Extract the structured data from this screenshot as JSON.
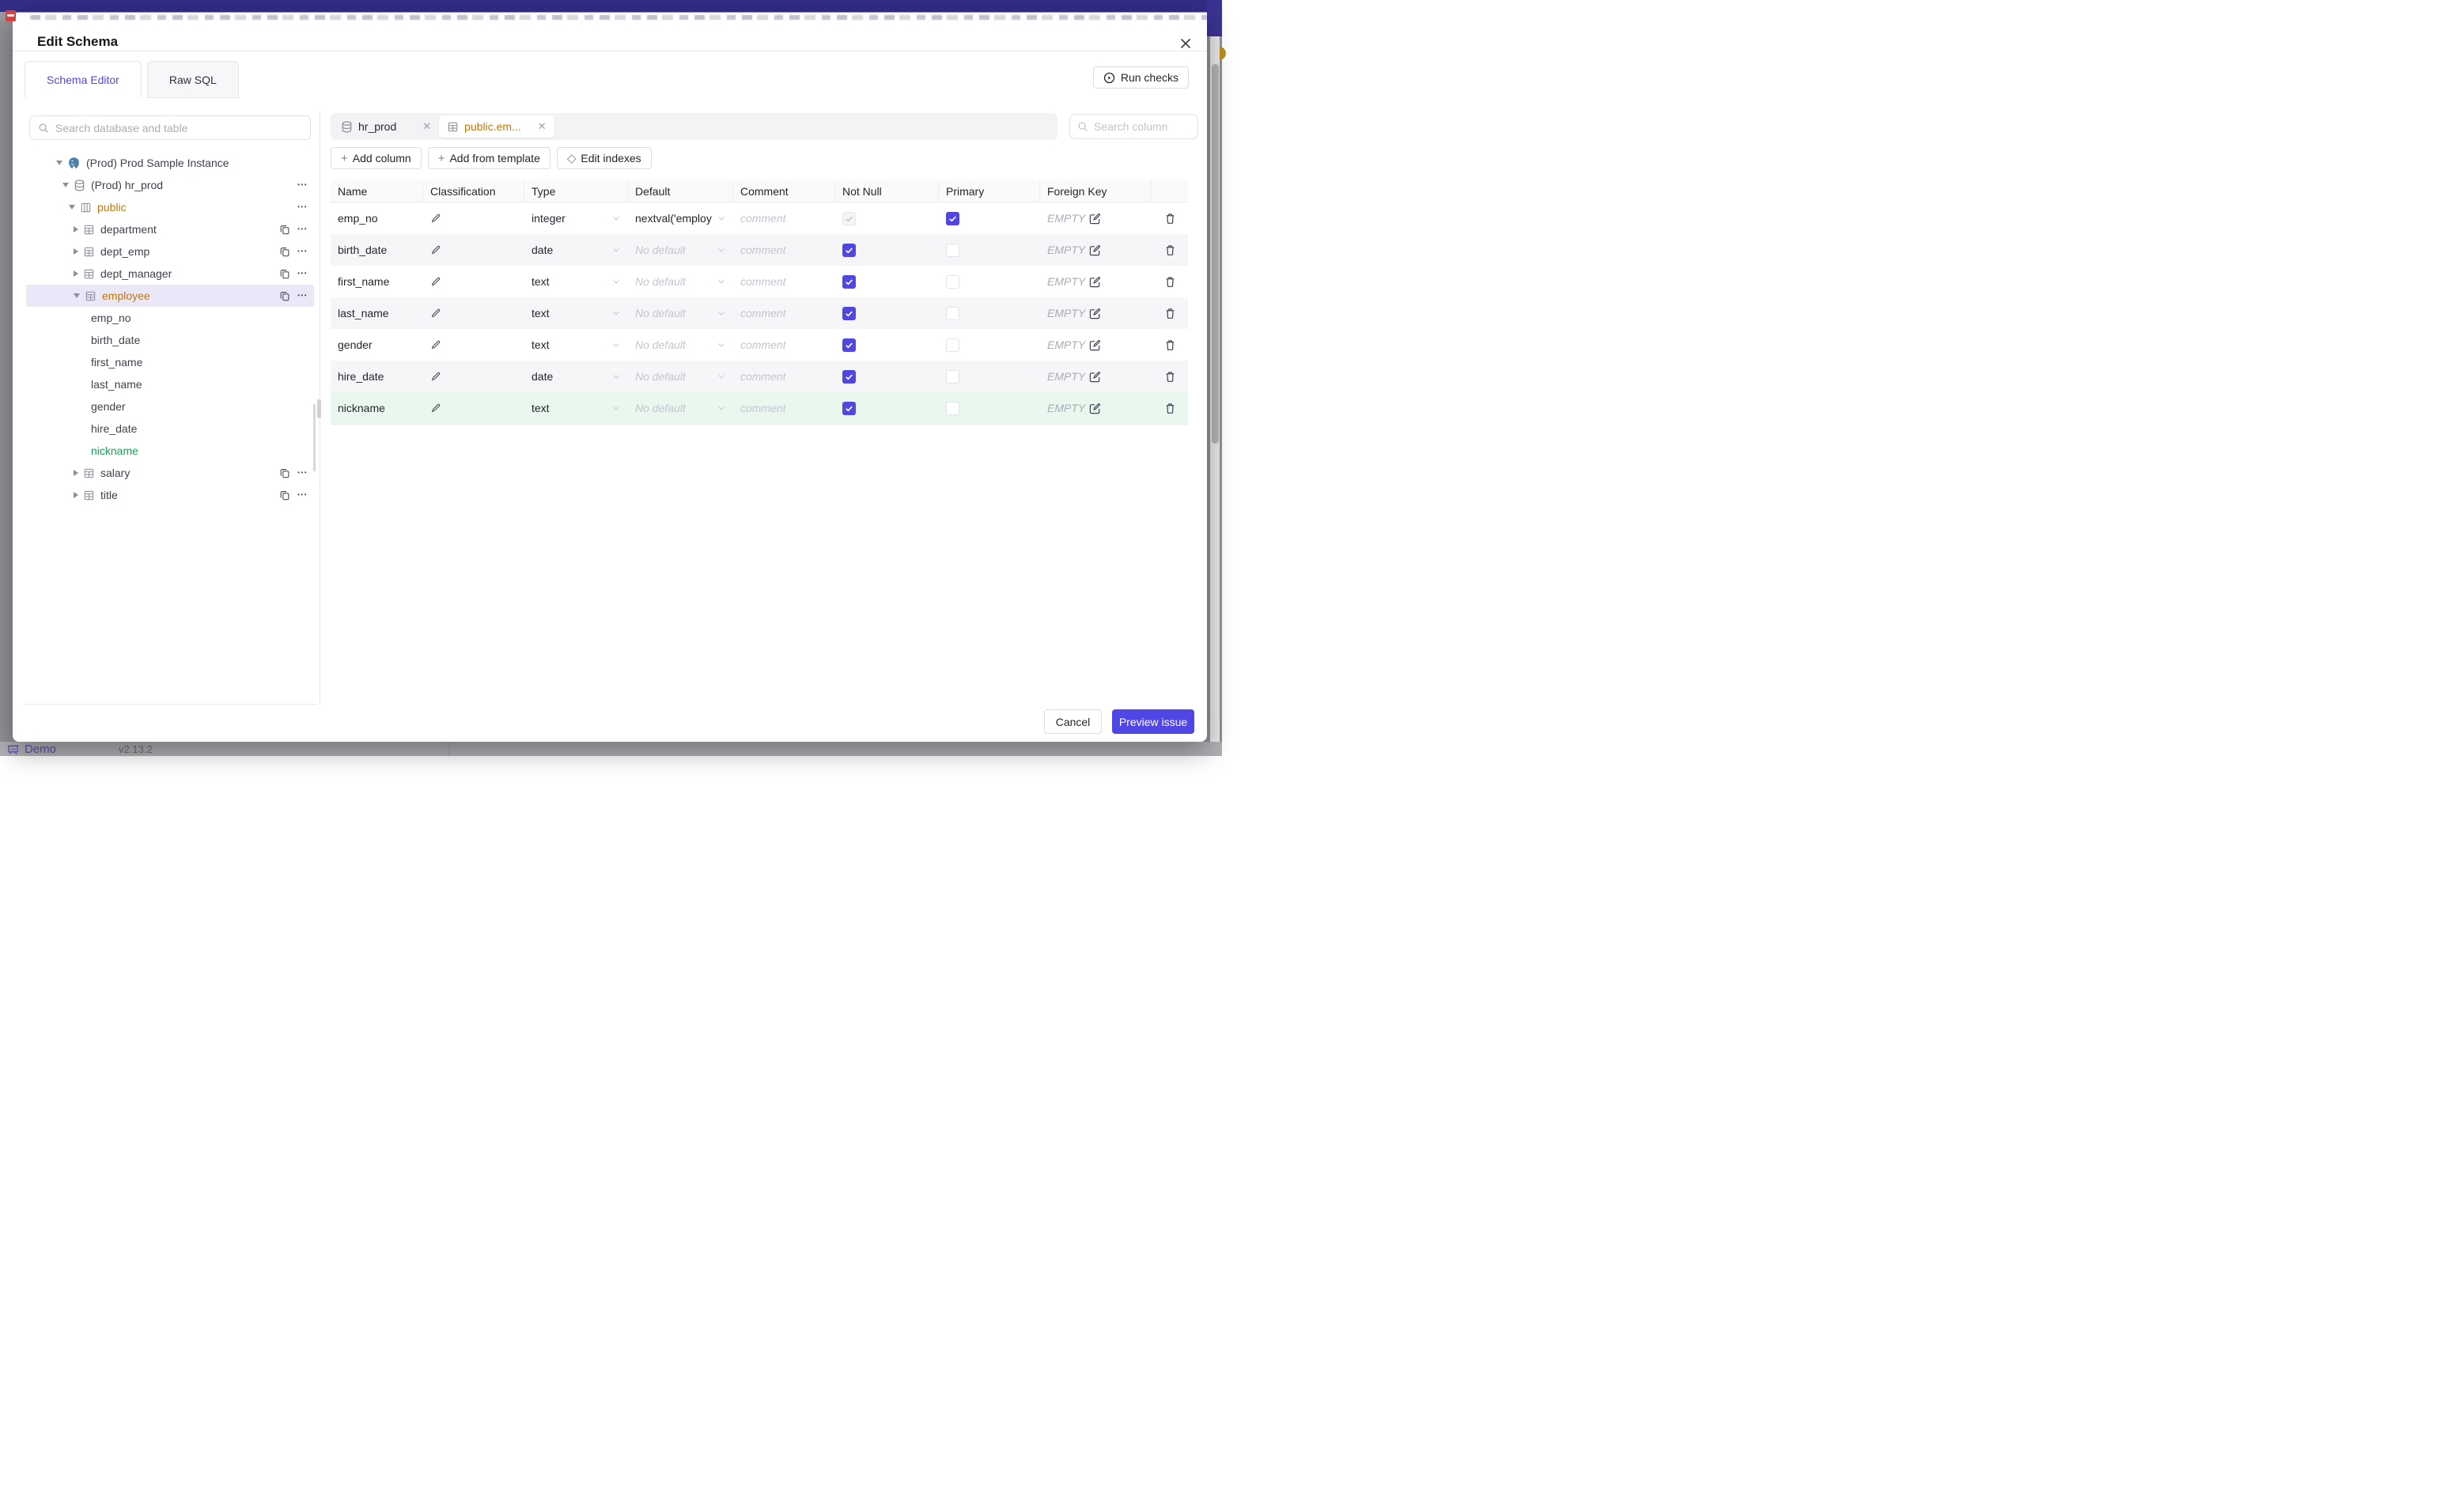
{
  "colors": {
    "primary": "#4f46e5",
    "amber": "#c2770e",
    "green": "#18a058",
    "banner": "#332d85",
    "checkbox": "#5146e0"
  },
  "underlay": {
    "demo_label": "Demo",
    "version": "v2.13.2"
  },
  "modal": {
    "title": "Edit Schema",
    "tabs": [
      {
        "label": "Schema Editor",
        "active": true
      },
      {
        "label": "Raw SQL",
        "active": false
      }
    ],
    "run_checks_label": "Run checks",
    "sidebar": {
      "search_placeholder": "Search database and table",
      "tree": [
        {
          "label": "(Prod) Prod Sample Instance",
          "level": 0,
          "caret": "down",
          "icon": "postgres"
        },
        {
          "label": "(Prod) hr_prod",
          "level": 1,
          "caret": "down",
          "icon": "database",
          "dots": true
        },
        {
          "label": "public",
          "level": 2,
          "caret": "down",
          "icon": "schema",
          "color": "amber",
          "dots": true
        },
        {
          "label": "department",
          "level": 3,
          "caret": "right",
          "icon": "table",
          "copy": true,
          "dots": true
        },
        {
          "label": "dept_emp",
          "level": 3,
          "caret": "right",
          "icon": "table",
          "copy": true,
          "dots": true
        },
        {
          "label": "dept_manager",
          "level": 3,
          "caret": "right",
          "icon": "table",
          "copy": true,
          "dots": true
        },
        {
          "label": "employee",
          "level": 3,
          "caret": "down",
          "icon": "table",
          "color": "amber",
          "selected": true,
          "copy": true,
          "dots": true
        },
        {
          "label": "emp_no",
          "level": 4
        },
        {
          "label": "birth_date",
          "level": 4
        },
        {
          "label": "first_name",
          "level": 4
        },
        {
          "label": "last_name",
          "level": 4
        },
        {
          "label": "gender",
          "level": 4
        },
        {
          "label": "hire_date",
          "level": 4
        },
        {
          "label": "nickname",
          "level": 4,
          "color": "green"
        },
        {
          "label": "salary",
          "level": 3,
          "caret": "right",
          "icon": "table",
          "copy": true,
          "dots": true
        },
        {
          "label": "title",
          "level": 3,
          "caret": "right",
          "icon": "table",
          "copy": true,
          "dots": true
        }
      ]
    },
    "editor": {
      "chips": [
        {
          "label": "hr_prod",
          "icon": "database",
          "active": false
        },
        {
          "label": "public.em...",
          "icon": "table",
          "active": true,
          "color": "amber"
        }
      ],
      "toolbar": [
        {
          "label": "Add column",
          "icon": "plus"
        },
        {
          "label": "Add from template",
          "icon": "plus"
        },
        {
          "label": "Edit indexes",
          "icon": "diamond"
        }
      ],
      "column_search_placeholder": "Search column",
      "table": {
        "headers": [
          "Name",
          "Classification",
          "Type",
          "Default",
          "Comment",
          "Not Null",
          "Primary",
          "Foreign Key",
          ""
        ],
        "comment_placeholder": "comment",
        "foreign_key_placeholder": "EMPTY",
        "rows": [
          {
            "name": "emp_no",
            "type": "integer",
            "default": "nextval('employ",
            "default_is_value": true,
            "not_null": "disabled-checked",
            "primary": "checked"
          },
          {
            "name": "birth_date",
            "type": "date",
            "default": "No default",
            "default_is_value": false,
            "not_null": "checked",
            "primary": "unchecked"
          },
          {
            "name": "first_name",
            "type": "text",
            "default": "No default",
            "default_is_value": false,
            "not_null": "checked",
            "primary": "unchecked"
          },
          {
            "name": "last_name",
            "type": "text",
            "default": "No default",
            "default_is_value": false,
            "not_null": "checked",
            "primary": "unchecked"
          },
          {
            "name": "gender",
            "type": "text",
            "default": "No default",
            "default_is_value": false,
            "not_null": "checked",
            "primary": "unchecked"
          },
          {
            "name": "hire_date",
            "type": "date",
            "default": "No default",
            "default_is_value": false,
            "not_null": "checked",
            "primary": "unchecked"
          },
          {
            "name": "nickname",
            "type": "text",
            "default": "No default",
            "default_is_value": false,
            "not_null": "checked",
            "primary": "unchecked",
            "highlight": true
          }
        ]
      }
    },
    "footer": {
      "cancel_label": "Cancel",
      "submit_label": "Preview issue"
    }
  }
}
